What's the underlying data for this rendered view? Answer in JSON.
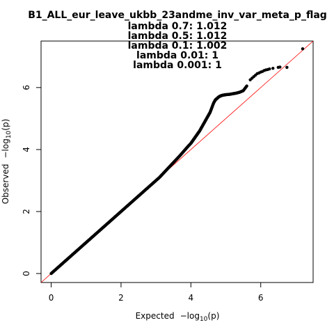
{
  "chart_data": {
    "type": "scatter",
    "title": "B1_ALL_eur_leave_ukbb_23andme_inv_var_meta_p_flag",
    "subtitle_lines": [
      "lambda 0.7: 1.012",
      "lambda 0.5: 1.012",
      "lambda 0.1: 1.002",
      "lambda 0.01: 1",
      "lambda 0.001: 1"
    ],
    "xlabel_prefix": "Expected",
    "ylabel_prefix": "Observed",
    "axis_quantity": {
      "minus": "−log",
      "subscript": "10",
      "arg": "(p)"
    },
    "xlim": [
      -0.29,
      7.5
    ],
    "ylim": [
      -0.29,
      7.5
    ],
    "xticks": [
      "0",
      "2",
      "4",
      "6"
    ],
    "yticks": [
      "0",
      "2",
      "4",
      "6"
    ],
    "reference_line": {
      "slope": 1,
      "intercept": 0,
      "color": "#ff0000"
    },
    "point_color": "#000000",
    "grid": false,
    "points": {
      "x": [
        0,
        0.1,
        0.2,
        0.3,
        0.4,
        0.5,
        0.6,
        0.7,
        0.8,
        0.9,
        1.0,
        1.1,
        1.2,
        1.3,
        1.4,
        1.5,
        1.6,
        1.7,
        1.8,
        1.9,
        2.0,
        2.1,
        2.2,
        2.3,
        2.4,
        2.5,
        2.6,
        2.7,
        2.8,
        2.9,
        3.0,
        3.1,
        3.2,
        3.3,
        3.4,
        3.5,
        3.6,
        3.7,
        3.8,
        3.9,
        4.0,
        4.05,
        4.1,
        4.15,
        4.2,
        4.25,
        4.3,
        4.35,
        4.4,
        4.45,
        4.5,
        4.55,
        4.6,
        4.65,
        4.7,
        4.75,
        4.8,
        4.85,
        4.9,
        4.95,
        5.0,
        5.1,
        5.2,
        5.3,
        5.4,
        5.5,
        5.6,
        5.7,
        5.75,
        5.8,
        5.85,
        5.9,
        5.95,
        6.0,
        6.05,
        6.1,
        6.15,
        6.2,
        6.25,
        6.35,
        6.5,
        6.55,
        6.75,
        7.2
      ],
      "y": [
        0,
        0.1,
        0.2,
        0.3,
        0.4,
        0.5,
        0.6,
        0.7,
        0.8,
        0.9,
        1.0,
        1.1,
        1.2,
        1.3,
        1.4,
        1.5,
        1.6,
        1.7,
        1.8,
        1.9,
        2.0,
        2.1,
        2.2,
        2.3,
        2.4,
        2.5,
        2.6,
        2.7,
        2.8,
        2.9,
        3.0,
        3.1,
        3.22,
        3.34,
        3.46,
        3.58,
        3.7,
        3.82,
        3.95,
        4.08,
        4.2,
        4.28,
        4.36,
        4.44,
        4.52,
        4.6,
        4.7,
        4.8,
        4.9,
        5.0,
        5.1,
        5.2,
        5.35,
        5.5,
        5.6,
        5.65,
        5.7,
        5.73,
        5.75,
        5.76,
        5.77,
        5.78,
        5.8,
        5.82,
        5.85,
        5.9,
        6.05,
        6.25,
        6.3,
        6.35,
        6.4,
        6.45,
        6.47,
        6.5,
        6.52,
        6.55,
        6.57,
        6.58,
        6.6,
        6.62,
        6.65,
        6.66,
        6.65,
        7.25
      ]
    }
  }
}
